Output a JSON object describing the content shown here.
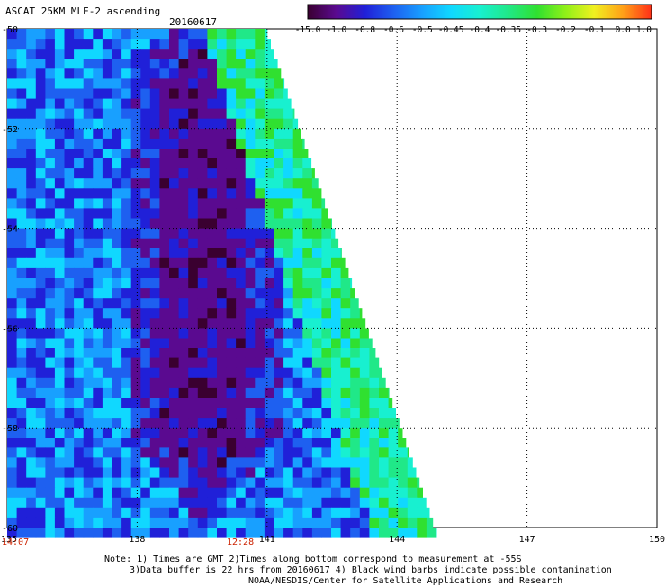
{
  "header": {
    "title": "ASCAT 25KM MLE-2 ascending",
    "date": "20160617"
  },
  "colorbar": {
    "labels": [
      "-15.0",
      "-1.0",
      "-0.8",
      "-0.6",
      "-0.5",
      "-0.45",
      "-0.4",
      "-0.35",
      "-0.3",
      "-0.2",
      "-0.1",
      "0.0",
      "1.0"
    ],
    "colors": [
      "#3a0030",
      "#5a0a90",
      "#2020d8",
      "#1e60f0",
      "#18a0ff",
      "#10d8ff",
      "#18f0d0",
      "#20e888",
      "#30e030",
      "#90f018",
      "#f0f020",
      "#ffa018",
      "#ff3018"
    ]
  },
  "map": {
    "lat_labels": [
      "-50",
      "-52",
      "-54",
      "-56",
      "-58",
      "-60"
    ],
    "lon_labels": [
      "135",
      "138",
      "141",
      "144",
      "147",
      "150"
    ],
    "time_labels": [
      "14:07",
      "12:28"
    ]
  },
  "notes": {
    "line1": "Note: 1) Times are GMT 2)Times along bottom correspond to measurement at -55S",
    "line2": "3)Data buffer is 22 hrs from 20160617 4) Black wind barbs indicate possible contamination",
    "line3": "NOAA/NESDIS/Center for Satellite Applications and Research"
  },
  "chart_data": {
    "type": "heatmap",
    "title": "ASCAT 25KM MLE-2 ascending",
    "date": "20160617",
    "x": {
      "label": "",
      "range": [
        135,
        150
      ],
      "ticks": [
        135,
        138,
        141,
        144,
        147,
        150
      ]
    },
    "y": {
      "label": "",
      "range": [
        -60,
        -50
      ],
      "ticks": [
        -50,
        -52,
        -54,
        -56,
        -58,
        -60
      ]
    },
    "grid": "dotted",
    "colorbar_levels": [
      -15.0,
      -1.0,
      -0.8,
      -0.6,
      -0.5,
      -0.45,
      -0.4,
      -0.35,
      -0.3,
      -0.2,
      -0.1,
      0.0,
      1.0
    ],
    "swath_east_edge": [
      {
        "lat": -50,
        "lon": 141
      },
      {
        "lat": -60,
        "lon": 144.9
      }
    ],
    "regions": [
      {
        "description": "core of lowest values",
        "lon_range": [
          137.8,
          141.0
        ],
        "lat_range": [
          -58.0,
          -50.5
        ],
        "value_approx": -1.0
      },
      {
        "description": "eastern swath edge band",
        "lon_range": [
          141.0,
          144.5
        ],
        "lat_range": [
          -60.0,
          -51.0
        ],
        "value_approx": -0.35
      },
      {
        "description": "southwest area",
        "lon_range": [
          135.0,
          138.0
        ],
        "lat_range": [
          -60.0,
          -54.0
        ],
        "value_approx": -0.5
      }
    ]
  }
}
